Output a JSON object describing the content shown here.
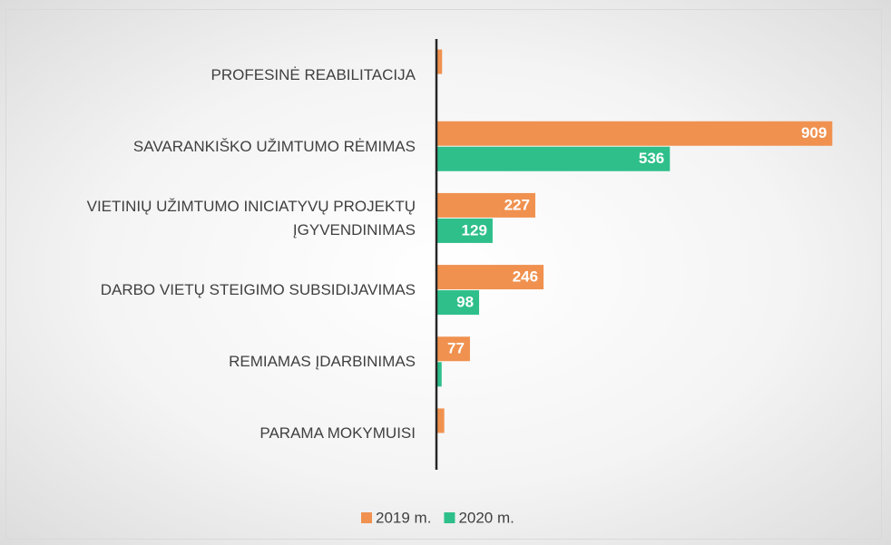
{
  "chart_data": {
    "type": "bar",
    "orientation": "horizontal",
    "categories": [
      "PROFESINĖ REABILITACIJA",
      "SAVARANKIŠKO UŽIMTUMO RĖMIMAS",
      "VIETINIŲ UŽIMTUMO INICIATYVŲ PROJEKTŲ ĮGYVENDINIMAS",
      "DARBO VIETŲ STEIGIMO SUBSIDIJAVIMAS",
      "REMIAMAS ĮDARBINIMAS",
      "PARAMA MOKYMUISI"
    ],
    "series": [
      {
        "name": "2019 m.",
        "color": "#f0914f",
        "values": [
          13,
          909,
          227,
          246,
          77,
          18
        ]
      },
      {
        "name": "2020 m.",
        "color": "#2ebf8a",
        "values": [
          null,
          536,
          129,
          98,
          12,
          null
        ]
      }
    ],
    "xlim": [
      0,
      1000
    ],
    "legend": "bottom"
  }
}
